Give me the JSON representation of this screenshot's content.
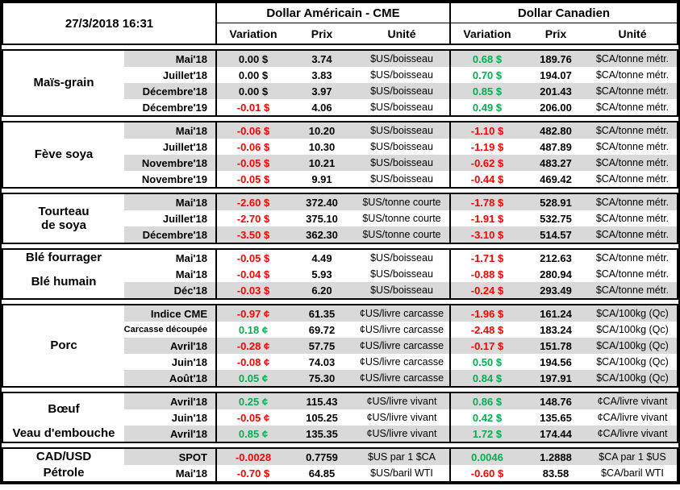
{
  "header": {
    "timestamp": "27/3/2018 16:31",
    "usd_title": "Dollar Américain - CME",
    "cad_title": "Dollar Canadien",
    "columns": {
      "variation": "Variation",
      "prix": "Prix",
      "unite": "Unité"
    }
  },
  "colors": {
    "positive": "#00B050",
    "negative": "#FF0000",
    "zero": "#000000",
    "row_shade": "#D9D9D9"
  },
  "groups": [
    {
      "id": "mais-grain",
      "names": [
        {
          "label": "Maïs-grain",
          "span": 4
        }
      ],
      "shading": [
        1,
        0,
        1,
        0
      ],
      "rows": [
        {
          "label": "Mai'18",
          "us_var": "0.00 $",
          "us_prix": "3.74",
          "us_unit": "$US/boisseau",
          "ca_var": "0.68 $",
          "ca_prix": "189.76",
          "ca_unit": "$CA/tonne métr."
        },
        {
          "label": "Juillet'18",
          "us_var": "0.00 $",
          "us_prix": "3.83",
          "us_unit": "$US/boisseau",
          "ca_var": "0.70 $",
          "ca_prix": "194.07",
          "ca_unit": "$CA/tonne métr."
        },
        {
          "label": "Décembre'18",
          "us_var": "0.00 $",
          "us_prix": "3.97",
          "us_unit": "$US/boisseau",
          "ca_var": "0.85 $",
          "ca_prix": "201.43",
          "ca_unit": "$CA/tonne métr."
        },
        {
          "label": "Décembre'19",
          "us_var": "-0.01 $",
          "us_prix": "4.06",
          "us_unit": "$US/boisseau",
          "ca_var": "0.49 $",
          "ca_prix": "206.00",
          "ca_unit": "$CA/tonne métr."
        }
      ]
    },
    {
      "id": "feve-soya",
      "names": [
        {
          "label": "Fève soya",
          "span": 4
        }
      ],
      "shading": [
        1,
        0,
        1,
        0
      ],
      "rows": [
        {
          "label": "Mai'18",
          "us_var": "-0.06 $",
          "us_prix": "10.20",
          "us_unit": "$US/boisseau",
          "ca_var": "-1.10 $",
          "ca_prix": "482.80",
          "ca_unit": "$CA/tonne métr."
        },
        {
          "label": "Juillet'18",
          "us_var": "-0.06 $",
          "us_prix": "10.30",
          "us_unit": "$US/boisseau",
          "ca_var": "-1.19 $",
          "ca_prix": "487.89",
          "ca_unit": "$CA/tonne métr."
        },
        {
          "label": "Novembre'18",
          "us_var": "-0.05 $",
          "us_prix": "10.21",
          "us_unit": "$US/boisseau",
          "ca_var": "-0.62 $",
          "ca_prix": "483.27",
          "ca_unit": "$CA/tonne métr."
        },
        {
          "label": "Novembre'19",
          "us_var": "-0.05 $",
          "us_prix": "9.91",
          "us_unit": "$US/boisseau",
          "ca_var": "-0.44 $",
          "ca_prix": "469.42",
          "ca_unit": "$CA/tonne métr."
        }
      ]
    },
    {
      "id": "tourteau-de-soya",
      "names": [
        {
          "label": "Tourteau\nde soya",
          "span": 3
        }
      ],
      "shading": [
        1,
        0,
        1
      ],
      "rows": [
        {
          "label": "Mai'18",
          "us_var": "-2.60 $",
          "us_prix": "372.40",
          "us_unit": "$US/tonne courte",
          "ca_var": "-1.78 $",
          "ca_prix": "528.91",
          "ca_unit": "$CA/tonne métr."
        },
        {
          "label": "Juillet'18",
          "us_var": "-2.70 $",
          "us_prix": "375.10",
          "us_unit": "$US/tonne courte",
          "ca_var": "-1.91 $",
          "ca_prix": "532.75",
          "ca_unit": "$CA/tonne métr."
        },
        {
          "label": "Décembre'18",
          "us_var": "-3.50 $",
          "us_prix": "362.30",
          "us_unit": "$US/tonne courte",
          "ca_var": "-3.10 $",
          "ca_prix": "514.57",
          "ca_unit": "$CA/tonne métr."
        }
      ]
    },
    {
      "id": "ble",
      "names": [
        {
          "label": "Blé fourrager",
          "span": 1
        },
        {
          "label": "Blé humain",
          "span": 2
        }
      ],
      "shading": [
        0,
        0,
        1
      ],
      "rows": [
        {
          "label": "Mai'18",
          "us_var": "-0.05 $",
          "us_prix": "4.49",
          "us_unit": "$US/boisseau",
          "ca_var": "-1.71 $",
          "ca_prix": "212.63",
          "ca_unit": "$CA/tonne métr."
        },
        {
          "label": "Mai'18",
          "us_var": "-0.04 $",
          "us_prix": "5.93",
          "us_unit": "$US/boisseau",
          "ca_var": "-0.88 $",
          "ca_prix": "280.94",
          "ca_unit": "$CA/tonne métr."
        },
        {
          "label": "Déc'18",
          "us_var": "-0.03 $",
          "us_prix": "6.20",
          "us_unit": "$US/boisseau",
          "ca_var": "-0.24 $",
          "ca_prix": "293.49",
          "ca_unit": "$CA/tonne métr."
        }
      ]
    },
    {
      "id": "porc",
      "names": [
        {
          "label": "Porc",
          "span": 5
        }
      ],
      "shading": [
        1,
        0,
        1,
        0,
        1
      ],
      "rows": [
        {
          "label": "Indice CME",
          "us_var": "-0.97 ¢",
          "us_prix": "61.35",
          "us_unit": "¢US/livre carcasse",
          "ca_var": "-1.96 $",
          "ca_prix": "161.24",
          "ca_unit": "$CA/100kg (Qc)"
        },
        {
          "label": "Carcasse découpée",
          "us_var": "0.18 ¢",
          "us_prix": "69.72",
          "us_unit": "¢US/livre carcasse",
          "ca_var": "-2.48 $",
          "ca_prix": "183.24",
          "ca_unit": "$CA/100kg (Qc)"
        },
        {
          "label": "Avril'18",
          "us_var": "-0.28 ¢",
          "us_prix": "57.75",
          "us_unit": "¢US/livre carcasse",
          "ca_var": "-0.17 $",
          "ca_prix": "151.78",
          "ca_unit": "$CA/100kg (Qc)"
        },
        {
          "label": "Juin'18",
          "us_var": "-0.08 ¢",
          "us_prix": "74.03",
          "us_unit": "¢US/livre carcasse",
          "ca_var": "0.50 $",
          "ca_prix": "194.56",
          "ca_unit": "$CA/100kg (Qc)"
        },
        {
          "label": "Août'18",
          "us_var": "0.05 ¢",
          "us_prix": "75.30",
          "us_unit": "¢US/livre carcasse",
          "ca_var": "0.84 $",
          "ca_prix": "197.91",
          "ca_unit": "$CA/100kg (Qc)"
        }
      ]
    },
    {
      "id": "boeuf-veau",
      "names": [
        {
          "label": "Bœuf",
          "span": 2
        },
        {
          "label": "Veau d'embouche",
          "span": 1
        }
      ],
      "shading": [
        1,
        0,
        1
      ],
      "rows": [
        {
          "label": "Avril'18",
          "us_var": "0.25 ¢",
          "us_prix": "115.43",
          "us_unit": "¢US/livre vivant",
          "ca_var": "0.86 $",
          "ca_prix": "148.76",
          "ca_unit": "¢CA/livre vivant"
        },
        {
          "label": "Juin'18",
          "us_var": "-0.05 ¢",
          "us_prix": "105.25",
          "us_unit": "¢US/livre vivant",
          "ca_var": "0.42 $",
          "ca_prix": "135.65",
          "ca_unit": "¢CA/livre vivant"
        },
        {
          "label": "Avril'18",
          "us_var": "0.85 ¢",
          "us_prix": "135.35",
          "us_unit": "¢US/livre vivant",
          "ca_var": "1.72 $",
          "ca_prix": "174.44",
          "ca_unit": "¢CA/livre vivant"
        }
      ]
    },
    {
      "id": "cad-usd-petrole",
      "names": [
        {
          "label": "CAD/USD",
          "span": 1
        },
        {
          "label": "Pétrole",
          "span": 1
        }
      ],
      "shading": [
        1,
        0
      ],
      "rows": [
        {
          "label": "SPOT",
          "us_var": "-0.0028",
          "us_prix": "0.7759",
          "us_unit": "$US par 1 $CA",
          "ca_var": "0.0046",
          "ca_prix": "1.2888",
          "ca_unit": "$CA par 1 $US"
        },
        {
          "label": "Mai'18",
          "us_var": "-0.70 $",
          "us_prix": "64.85",
          "us_unit": "$US/baril WTI",
          "ca_var": "-0.60 $",
          "ca_prix": "83.58",
          "ca_unit": "$CA/baril WTI"
        }
      ]
    }
  ]
}
